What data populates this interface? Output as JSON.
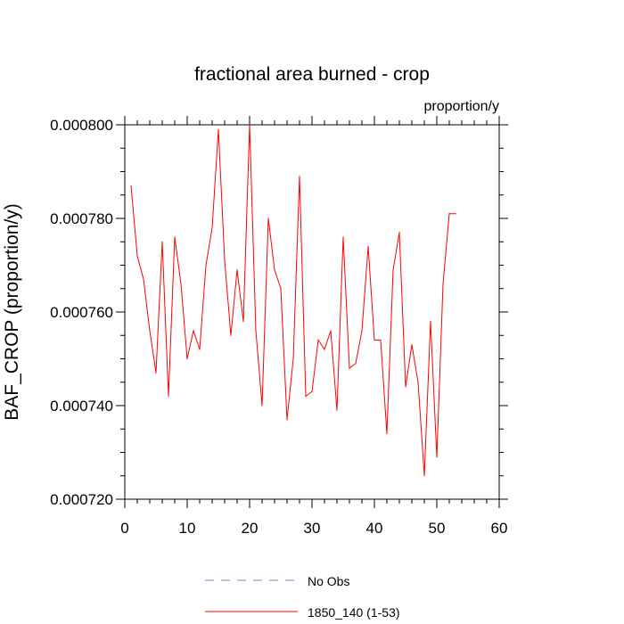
{
  "chart_data": {
    "type": "line",
    "title": "fractional area burned - crop",
    "units_label": "proportion/y",
    "ylabel": "BAF_CROP  (proportion/y)",
    "xlabel": "",
    "xlim": [
      0,
      60
    ],
    "ylim": [
      0.00072,
      0.0008
    ],
    "x_ticks": [
      0,
      10,
      20,
      30,
      40,
      50,
      60
    ],
    "x_tick_labels": [
      "0",
      "10",
      "20",
      "30",
      "40",
      "50",
      "60"
    ],
    "y_ticks": [
      0.00072,
      0.00074,
      0.00076,
      0.00078,
      0.0008
    ],
    "y_tick_labels": [
      "0.000720",
      "0.000740",
      "0.000760",
      "0.000780",
      "0.000800"
    ],
    "grid": false,
    "legend_position": "bottom",
    "legend": [
      {
        "label": "No Obs",
        "color": "#7f7fe6",
        "style": "dashed"
      },
      {
        "label": "1850_140 (1-53)",
        "color": "#ff0000",
        "style": "solid"
      }
    ],
    "series": [
      {
        "name": "1850_140 (1-53)",
        "color": "#ff0000",
        "x": [
          1,
          2,
          3,
          4,
          5,
          6,
          7,
          8,
          9,
          10,
          11,
          12,
          13,
          14,
          15,
          16,
          17,
          18,
          19,
          20,
          21,
          22,
          23,
          24,
          25,
          26,
          27,
          28,
          29,
          30,
          31,
          32,
          33,
          34,
          35,
          36,
          37,
          38,
          39,
          40,
          41,
          42,
          43,
          44,
          45,
          46,
          47,
          48,
          49,
          50,
          51,
          52,
          53
        ],
        "values": [
          0.000787,
          0.000772,
          0.000767,
          0.000756,
          0.000747,
          0.000775,
          0.000742,
          0.000776,
          0.000766,
          0.00075,
          0.000756,
          0.000752,
          0.00077,
          0.000778,
          0.000799,
          0.000771,
          0.000755,
          0.000769,
          0.000758,
          0.0008,
          0.000756,
          0.00074,
          0.00078,
          0.000769,
          0.000765,
          0.000737,
          0.00075,
          0.000789,
          0.000742,
          0.000743,
          0.000754,
          0.000752,
          0.000756,
          0.000739,
          0.000776,
          0.000748,
          0.000749,
          0.000756,
          0.000774,
          0.000754,
          0.000754,
          0.000734,
          0.000769,
          0.000777,
          0.000744,
          0.000753,
          0.000745,
          0.000725,
          0.000758,
          0.000729,
          0.000766,
          0.000781,
          0.000781
        ]
      }
    ]
  }
}
